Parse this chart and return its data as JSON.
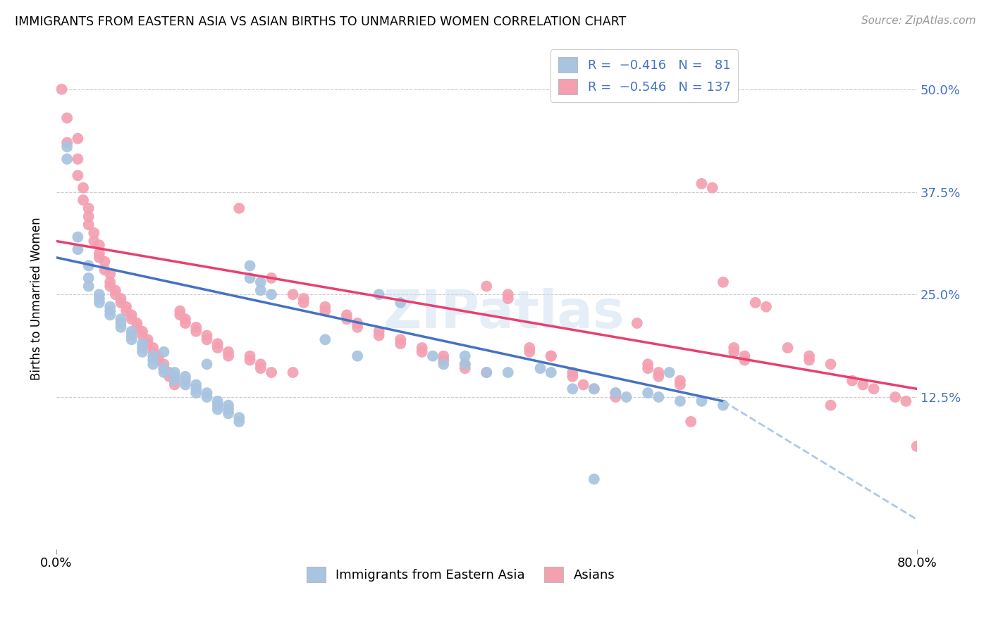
{
  "title": "IMMIGRANTS FROM EASTERN ASIA VS ASIAN BIRTHS TO UNMARRIED WOMEN CORRELATION CHART",
  "source": "Source: ZipAtlas.com",
  "ylabel": "Births to Unmarried Women",
  "ytick_labels": [
    "50.0%",
    "37.5%",
    "25.0%",
    "12.5%"
  ],
  "ytick_values": [
    0.5,
    0.375,
    0.25,
    0.125
  ],
  "xlim": [
    0.0,
    0.8
  ],
  "ylim": [
    -0.06,
    0.55
  ],
  "legend_label1": "Immigrants from Eastern Asia",
  "legend_label2": "Asians",
  "color_blue": "#a8c4e0",
  "color_pink": "#f4a0b0",
  "line_blue": "#4472c4",
  "line_pink": "#e84070",
  "line_dashed_color": "#b0c8e8",
  "blue_scatter": [
    [
      0.01,
      0.43
    ],
    [
      0.01,
      0.415
    ],
    [
      0.02,
      0.305
    ],
    [
      0.02,
      0.32
    ],
    [
      0.03,
      0.285
    ],
    [
      0.03,
      0.27
    ],
    [
      0.03,
      0.26
    ],
    [
      0.04,
      0.245
    ],
    [
      0.04,
      0.25
    ],
    [
      0.04,
      0.24
    ],
    [
      0.05,
      0.235
    ],
    [
      0.05,
      0.23
    ],
    [
      0.05,
      0.225
    ],
    [
      0.06,
      0.22
    ],
    [
      0.06,
      0.215
    ],
    [
      0.06,
      0.21
    ],
    [
      0.07,
      0.205
    ],
    [
      0.07,
      0.2
    ],
    [
      0.07,
      0.195
    ],
    [
      0.08,
      0.19
    ],
    [
      0.08,
      0.185
    ],
    [
      0.08,
      0.18
    ],
    [
      0.09,
      0.175
    ],
    [
      0.09,
      0.17
    ],
    [
      0.09,
      0.165
    ],
    [
      0.1,
      0.16
    ],
    [
      0.1,
      0.155
    ],
    [
      0.1,
      0.18
    ],
    [
      0.11,
      0.15
    ],
    [
      0.11,
      0.155
    ],
    [
      0.11,
      0.145
    ],
    [
      0.12,
      0.145
    ],
    [
      0.12,
      0.14
    ],
    [
      0.12,
      0.15
    ],
    [
      0.13,
      0.14
    ],
    [
      0.13,
      0.135
    ],
    [
      0.13,
      0.13
    ],
    [
      0.14,
      0.13
    ],
    [
      0.14,
      0.125
    ],
    [
      0.14,
      0.165
    ],
    [
      0.15,
      0.12
    ],
    [
      0.15,
      0.115
    ],
    [
      0.15,
      0.11
    ],
    [
      0.16,
      0.115
    ],
    [
      0.16,
      0.11
    ],
    [
      0.16,
      0.105
    ],
    [
      0.17,
      0.1
    ],
    [
      0.17,
      0.095
    ],
    [
      0.18,
      0.285
    ],
    [
      0.18,
      0.27
    ],
    [
      0.19,
      0.265
    ],
    [
      0.19,
      0.255
    ],
    [
      0.2,
      0.25
    ],
    [
      0.25,
      0.195
    ],
    [
      0.28,
      0.175
    ],
    [
      0.3,
      0.25
    ],
    [
      0.32,
      0.24
    ],
    [
      0.35,
      0.175
    ],
    [
      0.36,
      0.165
    ],
    [
      0.38,
      0.175
    ],
    [
      0.38,
      0.165
    ],
    [
      0.4,
      0.155
    ],
    [
      0.42,
      0.155
    ],
    [
      0.45,
      0.16
    ],
    [
      0.46,
      0.155
    ],
    [
      0.48,
      0.135
    ],
    [
      0.5,
      0.135
    ],
    [
      0.5,
      0.025
    ],
    [
      0.52,
      0.13
    ],
    [
      0.53,
      0.125
    ],
    [
      0.55,
      0.13
    ],
    [
      0.56,
      0.125
    ],
    [
      0.57,
      0.155
    ],
    [
      0.58,
      0.12
    ],
    [
      0.6,
      0.12
    ],
    [
      0.62,
      0.115
    ]
  ],
  "pink_scatter": [
    [
      0.005,
      0.5
    ],
    [
      0.01,
      0.465
    ],
    [
      0.01,
      0.435
    ],
    [
      0.02,
      0.44
    ],
    [
      0.02,
      0.415
    ],
    [
      0.02,
      0.395
    ],
    [
      0.025,
      0.38
    ],
    [
      0.025,
      0.365
    ],
    [
      0.03,
      0.355
    ],
    [
      0.03,
      0.345
    ],
    [
      0.03,
      0.335
    ],
    [
      0.035,
      0.325
    ],
    [
      0.035,
      0.315
    ],
    [
      0.04,
      0.31
    ],
    [
      0.04,
      0.3
    ],
    [
      0.04,
      0.295
    ],
    [
      0.045,
      0.29
    ],
    [
      0.045,
      0.28
    ],
    [
      0.05,
      0.275
    ],
    [
      0.05,
      0.265
    ],
    [
      0.05,
      0.26
    ],
    [
      0.055,
      0.255
    ],
    [
      0.055,
      0.25
    ],
    [
      0.06,
      0.245
    ],
    [
      0.06,
      0.24
    ],
    [
      0.065,
      0.235
    ],
    [
      0.065,
      0.23
    ],
    [
      0.07,
      0.225
    ],
    [
      0.07,
      0.22
    ],
    [
      0.075,
      0.215
    ],
    [
      0.075,
      0.21
    ],
    [
      0.08,
      0.205
    ],
    [
      0.08,
      0.2
    ],
    [
      0.085,
      0.195
    ],
    [
      0.085,
      0.19
    ],
    [
      0.09,
      0.185
    ],
    [
      0.09,
      0.18
    ],
    [
      0.095,
      0.175
    ],
    [
      0.095,
      0.17
    ],
    [
      0.1,
      0.165
    ],
    [
      0.1,
      0.16
    ],
    [
      0.105,
      0.155
    ],
    [
      0.105,
      0.15
    ],
    [
      0.11,
      0.145
    ],
    [
      0.11,
      0.14
    ],
    [
      0.115,
      0.23
    ],
    [
      0.115,
      0.225
    ],
    [
      0.12,
      0.22
    ],
    [
      0.12,
      0.215
    ],
    [
      0.13,
      0.21
    ],
    [
      0.13,
      0.205
    ],
    [
      0.14,
      0.2
    ],
    [
      0.14,
      0.195
    ],
    [
      0.15,
      0.19
    ],
    [
      0.15,
      0.185
    ],
    [
      0.16,
      0.18
    ],
    [
      0.16,
      0.175
    ],
    [
      0.17,
      0.355
    ],
    [
      0.18,
      0.175
    ],
    [
      0.18,
      0.17
    ],
    [
      0.19,
      0.165
    ],
    [
      0.19,
      0.16
    ],
    [
      0.2,
      0.155
    ],
    [
      0.2,
      0.27
    ],
    [
      0.22,
      0.155
    ],
    [
      0.22,
      0.25
    ],
    [
      0.23,
      0.245
    ],
    [
      0.23,
      0.24
    ],
    [
      0.25,
      0.235
    ],
    [
      0.25,
      0.23
    ],
    [
      0.27,
      0.225
    ],
    [
      0.27,
      0.22
    ],
    [
      0.28,
      0.215
    ],
    [
      0.28,
      0.21
    ],
    [
      0.3,
      0.205
    ],
    [
      0.3,
      0.2
    ],
    [
      0.32,
      0.195
    ],
    [
      0.32,
      0.19
    ],
    [
      0.34,
      0.185
    ],
    [
      0.34,
      0.18
    ],
    [
      0.36,
      0.175
    ],
    [
      0.36,
      0.17
    ],
    [
      0.38,
      0.165
    ],
    [
      0.38,
      0.16
    ],
    [
      0.4,
      0.155
    ],
    [
      0.4,
      0.26
    ],
    [
      0.42,
      0.25
    ],
    [
      0.42,
      0.245
    ],
    [
      0.44,
      0.185
    ],
    [
      0.44,
      0.18
    ],
    [
      0.46,
      0.175
    ],
    [
      0.46,
      0.175
    ],
    [
      0.48,
      0.155
    ],
    [
      0.48,
      0.15
    ],
    [
      0.49,
      0.14
    ],
    [
      0.5,
      0.135
    ],
    [
      0.52,
      0.13
    ],
    [
      0.52,
      0.125
    ],
    [
      0.54,
      0.215
    ],
    [
      0.55,
      0.165
    ],
    [
      0.55,
      0.16
    ],
    [
      0.56,
      0.155
    ],
    [
      0.56,
      0.15
    ],
    [
      0.58,
      0.145
    ],
    [
      0.58,
      0.14
    ],
    [
      0.59,
      0.095
    ],
    [
      0.6,
      0.385
    ],
    [
      0.61,
      0.38
    ],
    [
      0.62,
      0.265
    ],
    [
      0.63,
      0.185
    ],
    [
      0.63,
      0.18
    ],
    [
      0.64,
      0.175
    ],
    [
      0.64,
      0.17
    ],
    [
      0.65,
      0.24
    ],
    [
      0.66,
      0.235
    ],
    [
      0.68,
      0.185
    ],
    [
      0.7,
      0.175
    ],
    [
      0.7,
      0.17
    ],
    [
      0.72,
      0.165
    ],
    [
      0.72,
      0.115
    ],
    [
      0.74,
      0.145
    ],
    [
      0.75,
      0.14
    ],
    [
      0.76,
      0.135
    ],
    [
      0.78,
      0.125
    ],
    [
      0.79,
      0.12
    ],
    [
      0.8,
      0.065
    ]
  ],
  "blue_line_x": [
    0.0,
    0.62
  ],
  "blue_line_y": [
    0.295,
    0.12
  ],
  "pink_line_x": [
    0.0,
    0.8
  ],
  "pink_line_y": [
    0.315,
    0.135
  ],
  "dashed_line_x": [
    0.62,
    0.82
  ],
  "dashed_line_y": [
    0.12,
    -0.04
  ]
}
